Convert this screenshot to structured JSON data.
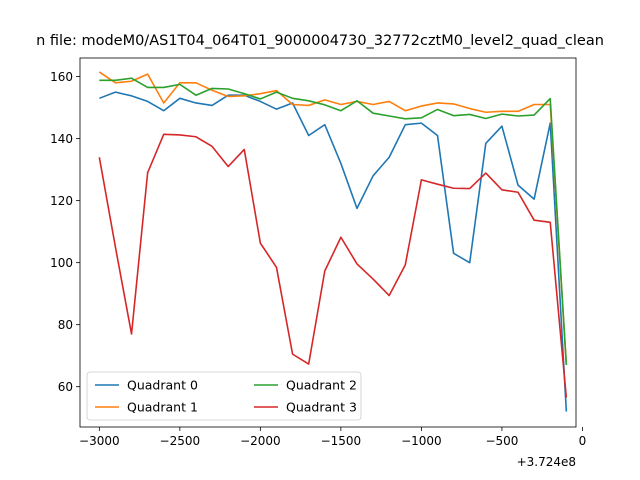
{
  "chart_data": {
    "type": "line",
    "title": "n file: modeM0/AS1T04_064T01_9000004730_32772cztM0_level2_quad_clean",
    "xlabel": "",
    "ylabel": "",
    "x_offset_label": "+3.724e8",
    "xlim": [
      -3120,
      -40
    ],
    "ylim": [
      47,
      166
    ],
    "xticks": [
      -3000,
      -2500,
      -2000,
      -1500,
      -1000,
      -500,
      0
    ],
    "xtick_labels": [
      "−3000",
      "−2500",
      "−2000",
      "−1500",
      "−1000",
      "−500",
      "0"
    ],
    "yticks": [
      60,
      80,
      100,
      120,
      140,
      160
    ],
    "ytick_labels": [
      "60",
      "80",
      "100",
      "120",
      "140",
      "160"
    ],
    "grid": false,
    "legend_position": "lower-left",
    "legend_columns": 2,
    "x": [
      -3000,
      -2900,
      -2800,
      -2700,
      -2600,
      -2500,
      -2400,
      -2300,
      -2200,
      -2100,
      -2000,
      -1900,
      -1800,
      -1700,
      -1600,
      -1500,
      -1400,
      -1300,
      -1200,
      -1100,
      -1000,
      -900,
      -800,
      -700,
      -600,
      -500,
      -400,
      -300,
      -200,
      -100
    ],
    "series": [
      {
        "name": "Quadrant 0",
        "color": "#1f77b4",
        "values": [
          153,
          155,
          153.8,
          152,
          149,
          153,
          151.5,
          150.7,
          154,
          154,
          152,
          149.5,
          151.5,
          141,
          144.5,
          132,
          117.5,
          128,
          134,
          144.5,
          145,
          141,
          103,
          100,
          138.5,
          144,
          125,
          120.5,
          145,
          52
        ]
      },
      {
        "name": "Quadrant 1",
        "color": "#ff7f0e",
        "values": [
          161.5,
          158,
          158.5,
          160.8,
          151.5,
          158,
          158,
          155.6,
          153.6,
          153.8,
          154.5,
          155.5,
          151,
          150.7,
          152.5,
          151,
          152,
          151,
          152,
          149,
          150.5,
          151.5,
          151.2,
          149.7,
          148.5,
          148.8,
          148.8,
          151,
          151,
          67
        ]
      },
      {
        "name": "Quadrant 2",
        "color": "#2ca02c",
        "values": [
          158.8,
          158.8,
          159.5,
          156.5,
          156.5,
          157.5,
          154,
          156.2,
          156,
          154.5,
          152.8,
          155,
          153,
          152.2,
          150.9,
          149,
          152.2,
          148.2,
          147.3,
          146.4,
          146.7,
          149.4,
          147.4,
          147.8,
          146.5,
          147.9,
          147.3,
          147.6,
          152.9,
          67
        ]
      },
      {
        "name": "Quadrant 3",
        "color": "#d62728",
        "values": [
          134,
          105,
          77,
          129,
          141.4,
          141.2,
          140.6,
          137.5,
          131,
          136.5,
          106.3,
          98.5,
          70.5,
          67.3,
          97.3,
          108.2,
          99.6,
          94.7,
          89.4,
          99.3,
          126.7,
          125.3,
          124,
          123.9,
          128.9,
          123.5,
          122.7,
          113.7,
          113,
          56.5
        ]
      }
    ]
  }
}
